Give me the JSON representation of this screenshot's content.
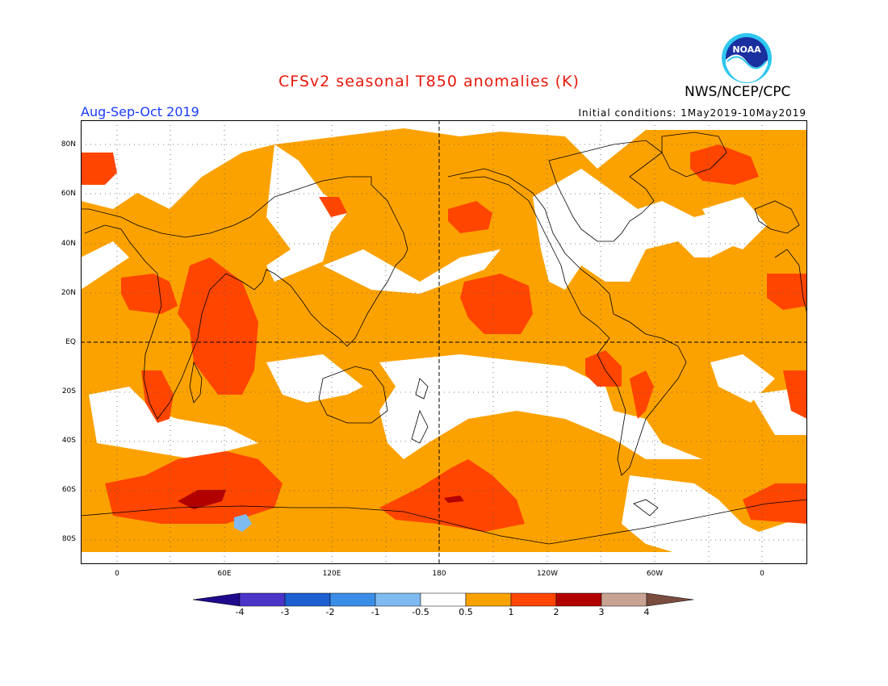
{
  "title": "CFSv2 seasonal T850 anomalies (K)",
  "organization": "NWS/NCEP/CPC",
  "logo_text": "NOAA",
  "period": "Aug-Sep-Oct 2019",
  "initial_conditions": "Initial conditions: 1May2019-10May2019",
  "lat_labels": [
    "80N",
    "60N",
    "40N",
    "20N",
    "EQ",
    "20S",
    "40S",
    "60S",
    "80S"
  ],
  "lon_labels": [
    "0",
    "60E",
    "120E",
    "180",
    "120W",
    "60W",
    "0"
  ],
  "colorbar": {
    "labels": [
      "-4",
      "-3",
      "-2",
      "-1",
      "-0.5",
      "0.5",
      "1",
      "2",
      "3",
      "4"
    ],
    "colors": [
      "#1f0a8c",
      "#4a35c8",
      "#1e5fd1",
      "#3b8ee8",
      "#7fbbf1",
      "#ffffff",
      "#fca200",
      "#ff4500",
      "#b20000",
      "#c8a394",
      "#7a4d3f"
    ]
  },
  "colors": {
    "anomaly_0_5_to_1": "#fca200",
    "anomaly_1_to_2": "#ff4500",
    "anomaly_2_to_3": "#b20000",
    "anomaly_neg_0_5_to_neg_1": "#7fbbf1",
    "title": "#e8180c",
    "period": "#1a3cff"
  }
}
